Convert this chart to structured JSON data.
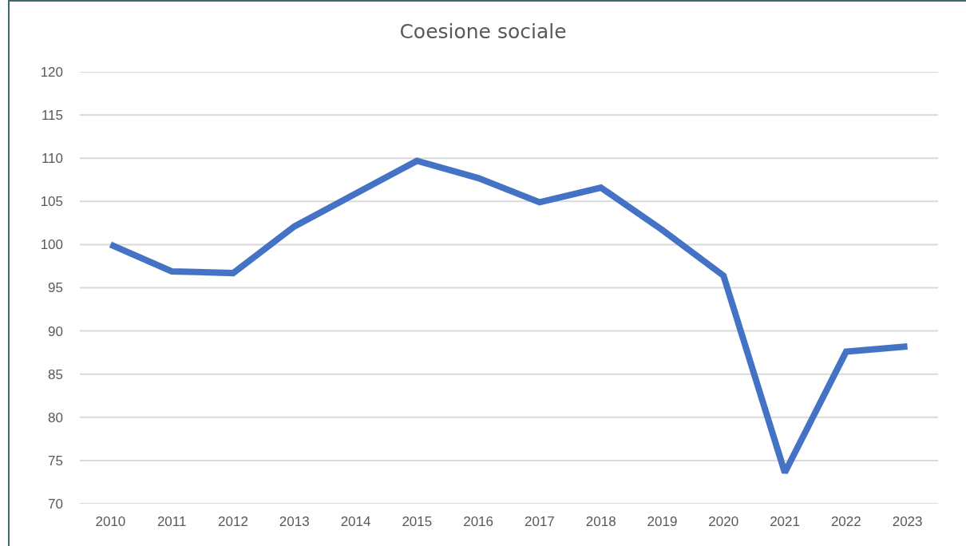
{
  "chart_data": {
    "type": "line",
    "title": "Coesione sociale",
    "categories": [
      "2010",
      "2011",
      "2012",
      "2013",
      "2014",
      "2015",
      "2016",
      "2017",
      "2018",
      "2019",
      "2020",
      "2021",
      "2022",
      "2023"
    ],
    "series": [
      {
        "color": "#4472c4",
        "values": [
          100.0,
          96.9,
          96.7,
          102.1,
          105.9,
          109.7,
          107.7,
          104.9,
          106.6,
          101.7,
          96.4,
          73.6,
          87.6,
          88.2
        ]
      }
    ],
    "ylim": [
      70,
      120
    ],
    "yticks": [
      70,
      75,
      80,
      85,
      90,
      95,
      100,
      105,
      110,
      115,
      120
    ],
    "grid": "y",
    "marker": "none",
    "line_style": "solid"
  }
}
